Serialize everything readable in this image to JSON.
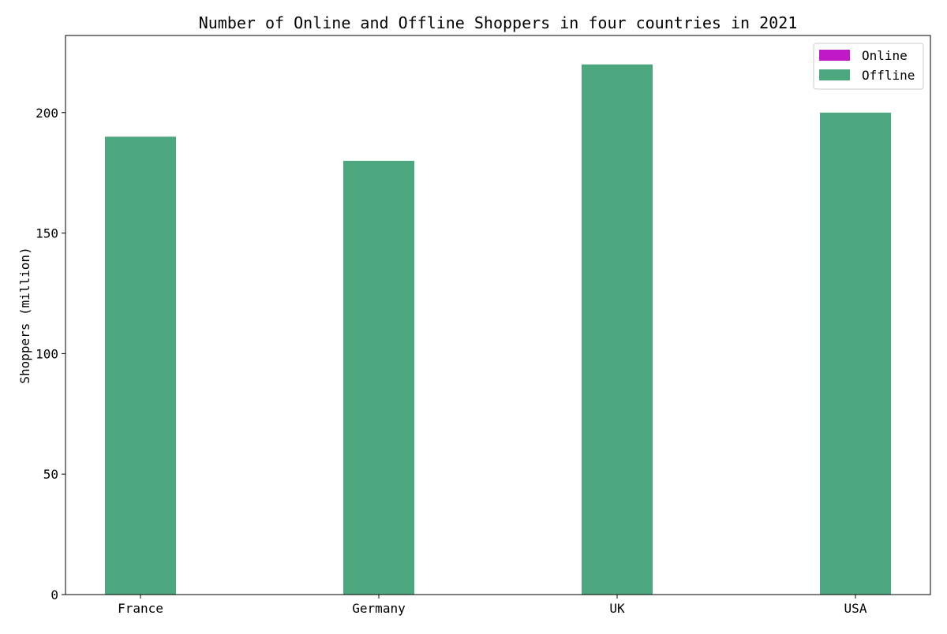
{
  "chart_data": {
    "type": "bar",
    "title": "Number of Online and Offline Shoppers in four countries in 2021",
    "xlabel": "",
    "ylabel": "Shoppers (million)",
    "categories": [
      "France",
      "Germany",
      "UK",
      "USA"
    ],
    "ylim": [
      0,
      232
    ],
    "yticks": [
      0,
      50,
      100,
      150,
      200
    ],
    "grid": false,
    "legend_position": "top-right",
    "series": [
      {
        "name": "Online",
        "color": "#bf1ac6",
        "values": [
          0,
          0,
          0,
          0
        ]
      },
      {
        "name": "Offline",
        "color": "#4ca77f",
        "values": [
          190,
          180,
          220,
          200
        ]
      }
    ]
  }
}
